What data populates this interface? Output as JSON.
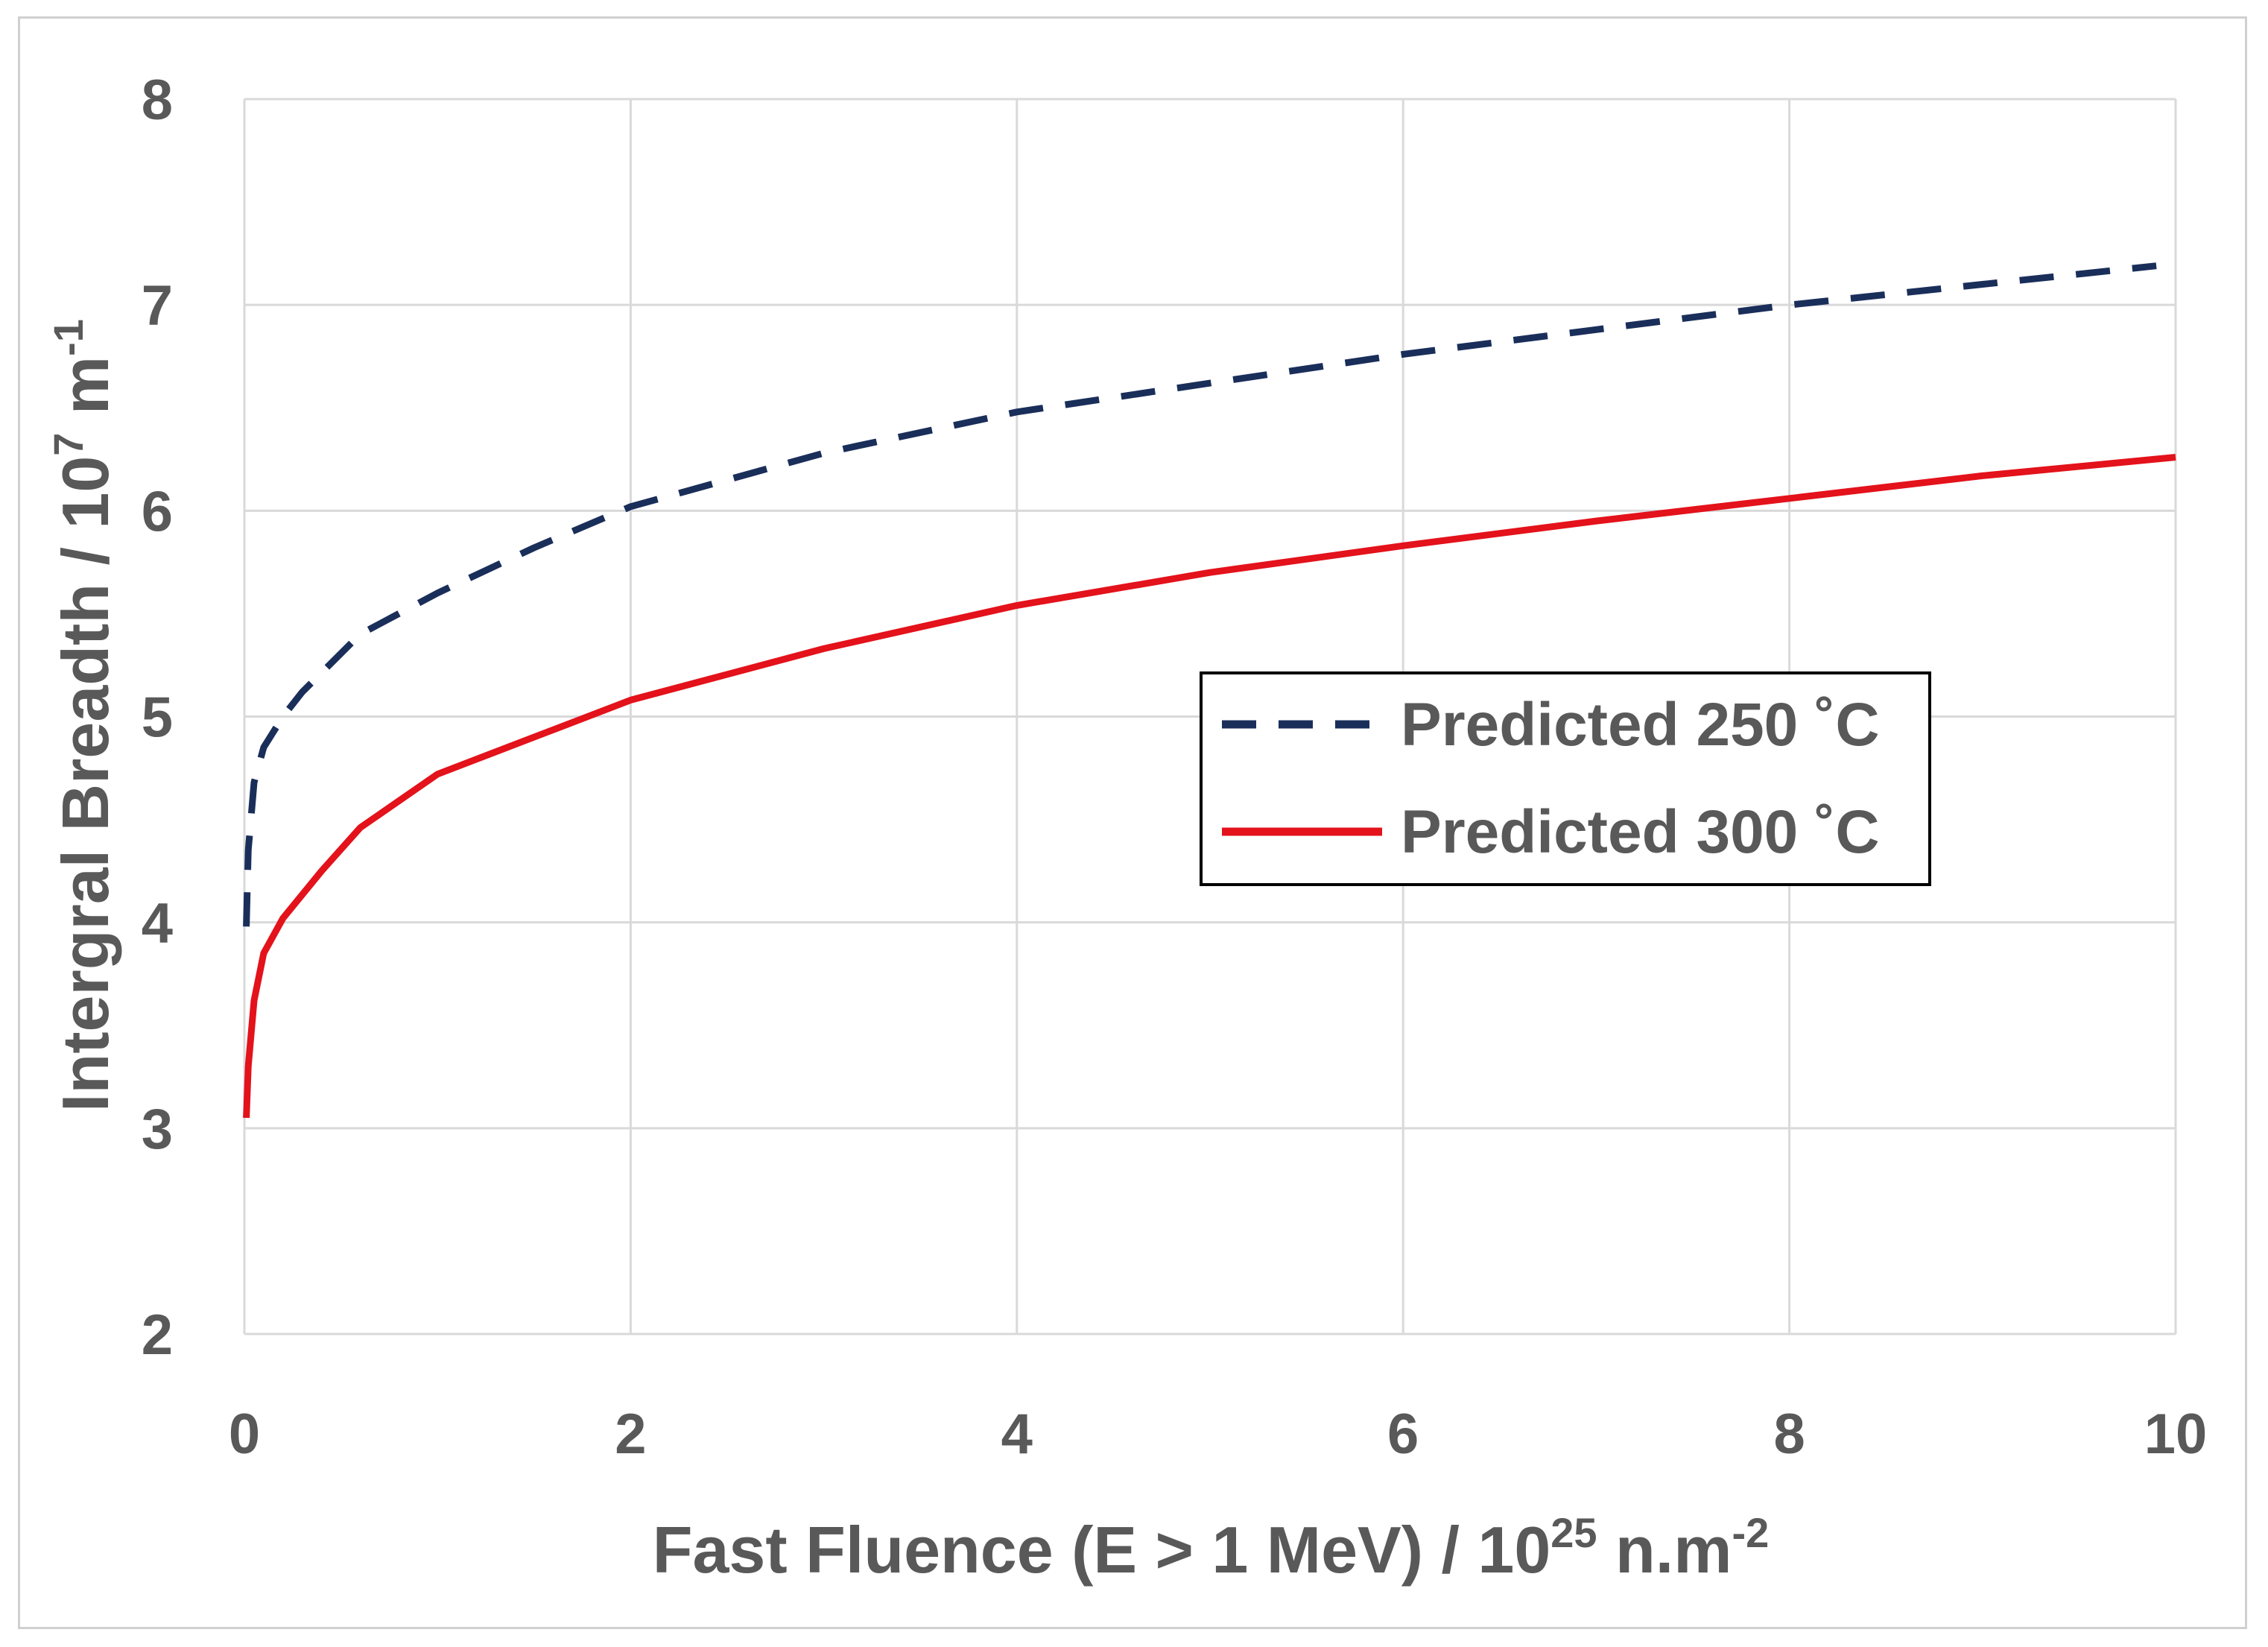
{
  "chart_data": {
    "type": "line",
    "title": "",
    "xlabel": {
      "prefix": "Fast Fluence (E > 1 MeV) / 10",
      "superscript": "25",
      "suffix": " n.m",
      "suffix_superscript": "-2"
    },
    "ylabel": {
      "prefix": "Intergral Breadth / 10",
      "superscript": "7",
      "suffix": " m",
      "suffix_superscript": "-1"
    },
    "xlim": [
      0,
      10
    ],
    "ylim": [
      2,
      8
    ],
    "xticks": [
      0,
      2,
      4,
      6,
      8,
      10
    ],
    "yticks": [
      2,
      3,
      4,
      5,
      6,
      7,
      8
    ],
    "grid": true,
    "legend_position": "center-right",
    "series": [
      {
        "name": "Predicted 250 ˚C",
        "color": "#1a2e5a",
        "style": "dashed",
        "x": [
          0.01,
          0.02,
          0.05,
          0.1,
          0.2,
          0.3,
          0.6,
          1,
          1.5,
          2,
          3,
          4,
          5,
          6,
          7,
          8,
          9,
          9.9
        ],
        "y": [
          3.98,
          4.35,
          4.68,
          4.85,
          5.0,
          5.12,
          5.4,
          5.6,
          5.82,
          6.02,
          6.28,
          6.48,
          6.62,
          6.76,
          6.88,
          7.0,
          7.1,
          7.19
        ]
      },
      {
        "name": "Predicted 300 ˚C",
        "color": "#e3121b",
        "style": "solid",
        "x": [
          0.01,
          0.02,
          0.05,
          0.1,
          0.2,
          0.4,
          0.6,
          1,
          1.5,
          2,
          3,
          4,
          5,
          6,
          7,
          8,
          9,
          10
        ],
        "y": [
          3.05,
          3.3,
          3.62,
          3.85,
          4.02,
          4.25,
          4.46,
          4.72,
          4.9,
          5.08,
          5.33,
          5.54,
          5.7,
          5.83,
          5.95,
          6.06,
          6.17,
          6.26
        ]
      }
    ]
  }
}
